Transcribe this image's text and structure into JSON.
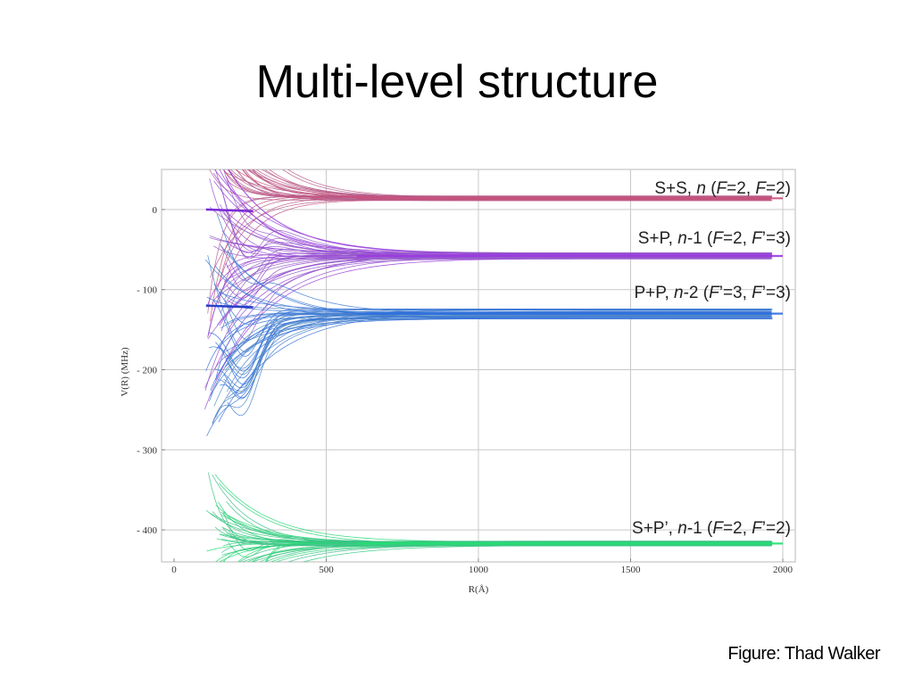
{
  "slide": {
    "title": "Multi-level structure",
    "credit": "Figure: Thad Walker"
  },
  "chart_data": {
    "type": "line",
    "title": "",
    "xlabel": "R(Å)",
    "ylabel": "V(R) (MHz)",
    "xlim": [
      0,
      2000
    ],
    "ylim": [
      -440,
      50
    ],
    "x_ticks": [
      0,
      500,
      1000,
      1500,
      2000
    ],
    "x_tick_labels": [
      "0",
      "500",
      "1000",
      "1500",
      "2000"
    ],
    "y_ticks": [
      0,
      -100,
      -200,
      -300,
      -400
    ],
    "y_tick_labels": [
      "0",
      "- 100",
      "- 200",
      "- 300",
      "- 400"
    ],
    "grid": true,
    "manifolds": [
      {
        "name": "S+S, n (F=2, F=2)",
        "asymptote": 14,
        "color": "#c8507a"
      },
      {
        "name": "S+P, n-1 (F=2, F’=3)",
        "asymptote": -58,
        "color": "#9a3ae0"
      },
      {
        "name": "P+P, n-2 (F’=3, F’=3)",
        "asymptote": -130,
        "color": "#2e6ee0"
      },
      {
        "name": "S+P’, n-1 (F=2, F’=2)",
        "asymptote": -417,
        "color": "#20e070"
      }
    ],
    "label_parts": [
      [
        {
          "t": "S+S, ",
          "i": false
        },
        {
          "t": "n",
          "i": true
        },
        {
          "t": " (",
          "i": false
        },
        {
          "t": "F",
          "i": true
        },
        {
          "t": "=2, ",
          "i": false
        },
        {
          "t": "F",
          "i": true
        },
        {
          "t": "=2)",
          "i": false
        }
      ],
      [
        {
          "t": "S+P, ",
          "i": false
        },
        {
          "t": "n",
          "i": true
        },
        {
          "t": "-1 (",
          "i": false
        },
        {
          "t": "F",
          "i": true
        },
        {
          "t": "=2, ",
          "i": false
        },
        {
          "t": "F",
          "i": true
        },
        {
          "t": "’=3)",
          "i": false
        }
      ],
      [
        {
          "t": "P+P, ",
          "i": false
        },
        {
          "t": "n",
          "i": true
        },
        {
          "t": "-2 (",
          "i": false
        },
        {
          "t": "F",
          "i": true
        },
        {
          "t": "’=3, ",
          "i": false
        },
        {
          "t": "F",
          "i": true
        },
        {
          "t": "’=3)",
          "i": false
        }
      ],
      [
        {
          "t": "S+P’, ",
          "i": false
        },
        {
          "t": "n",
          "i": true
        },
        {
          "t": "-1 (",
          "i": false
        },
        {
          "t": "F",
          "i": true
        },
        {
          "t": "=2, ",
          "i": false
        },
        {
          "t": "F",
          "i": true
        },
        {
          "t": "’=2)",
          "i": false
        }
      ]
    ]
  }
}
